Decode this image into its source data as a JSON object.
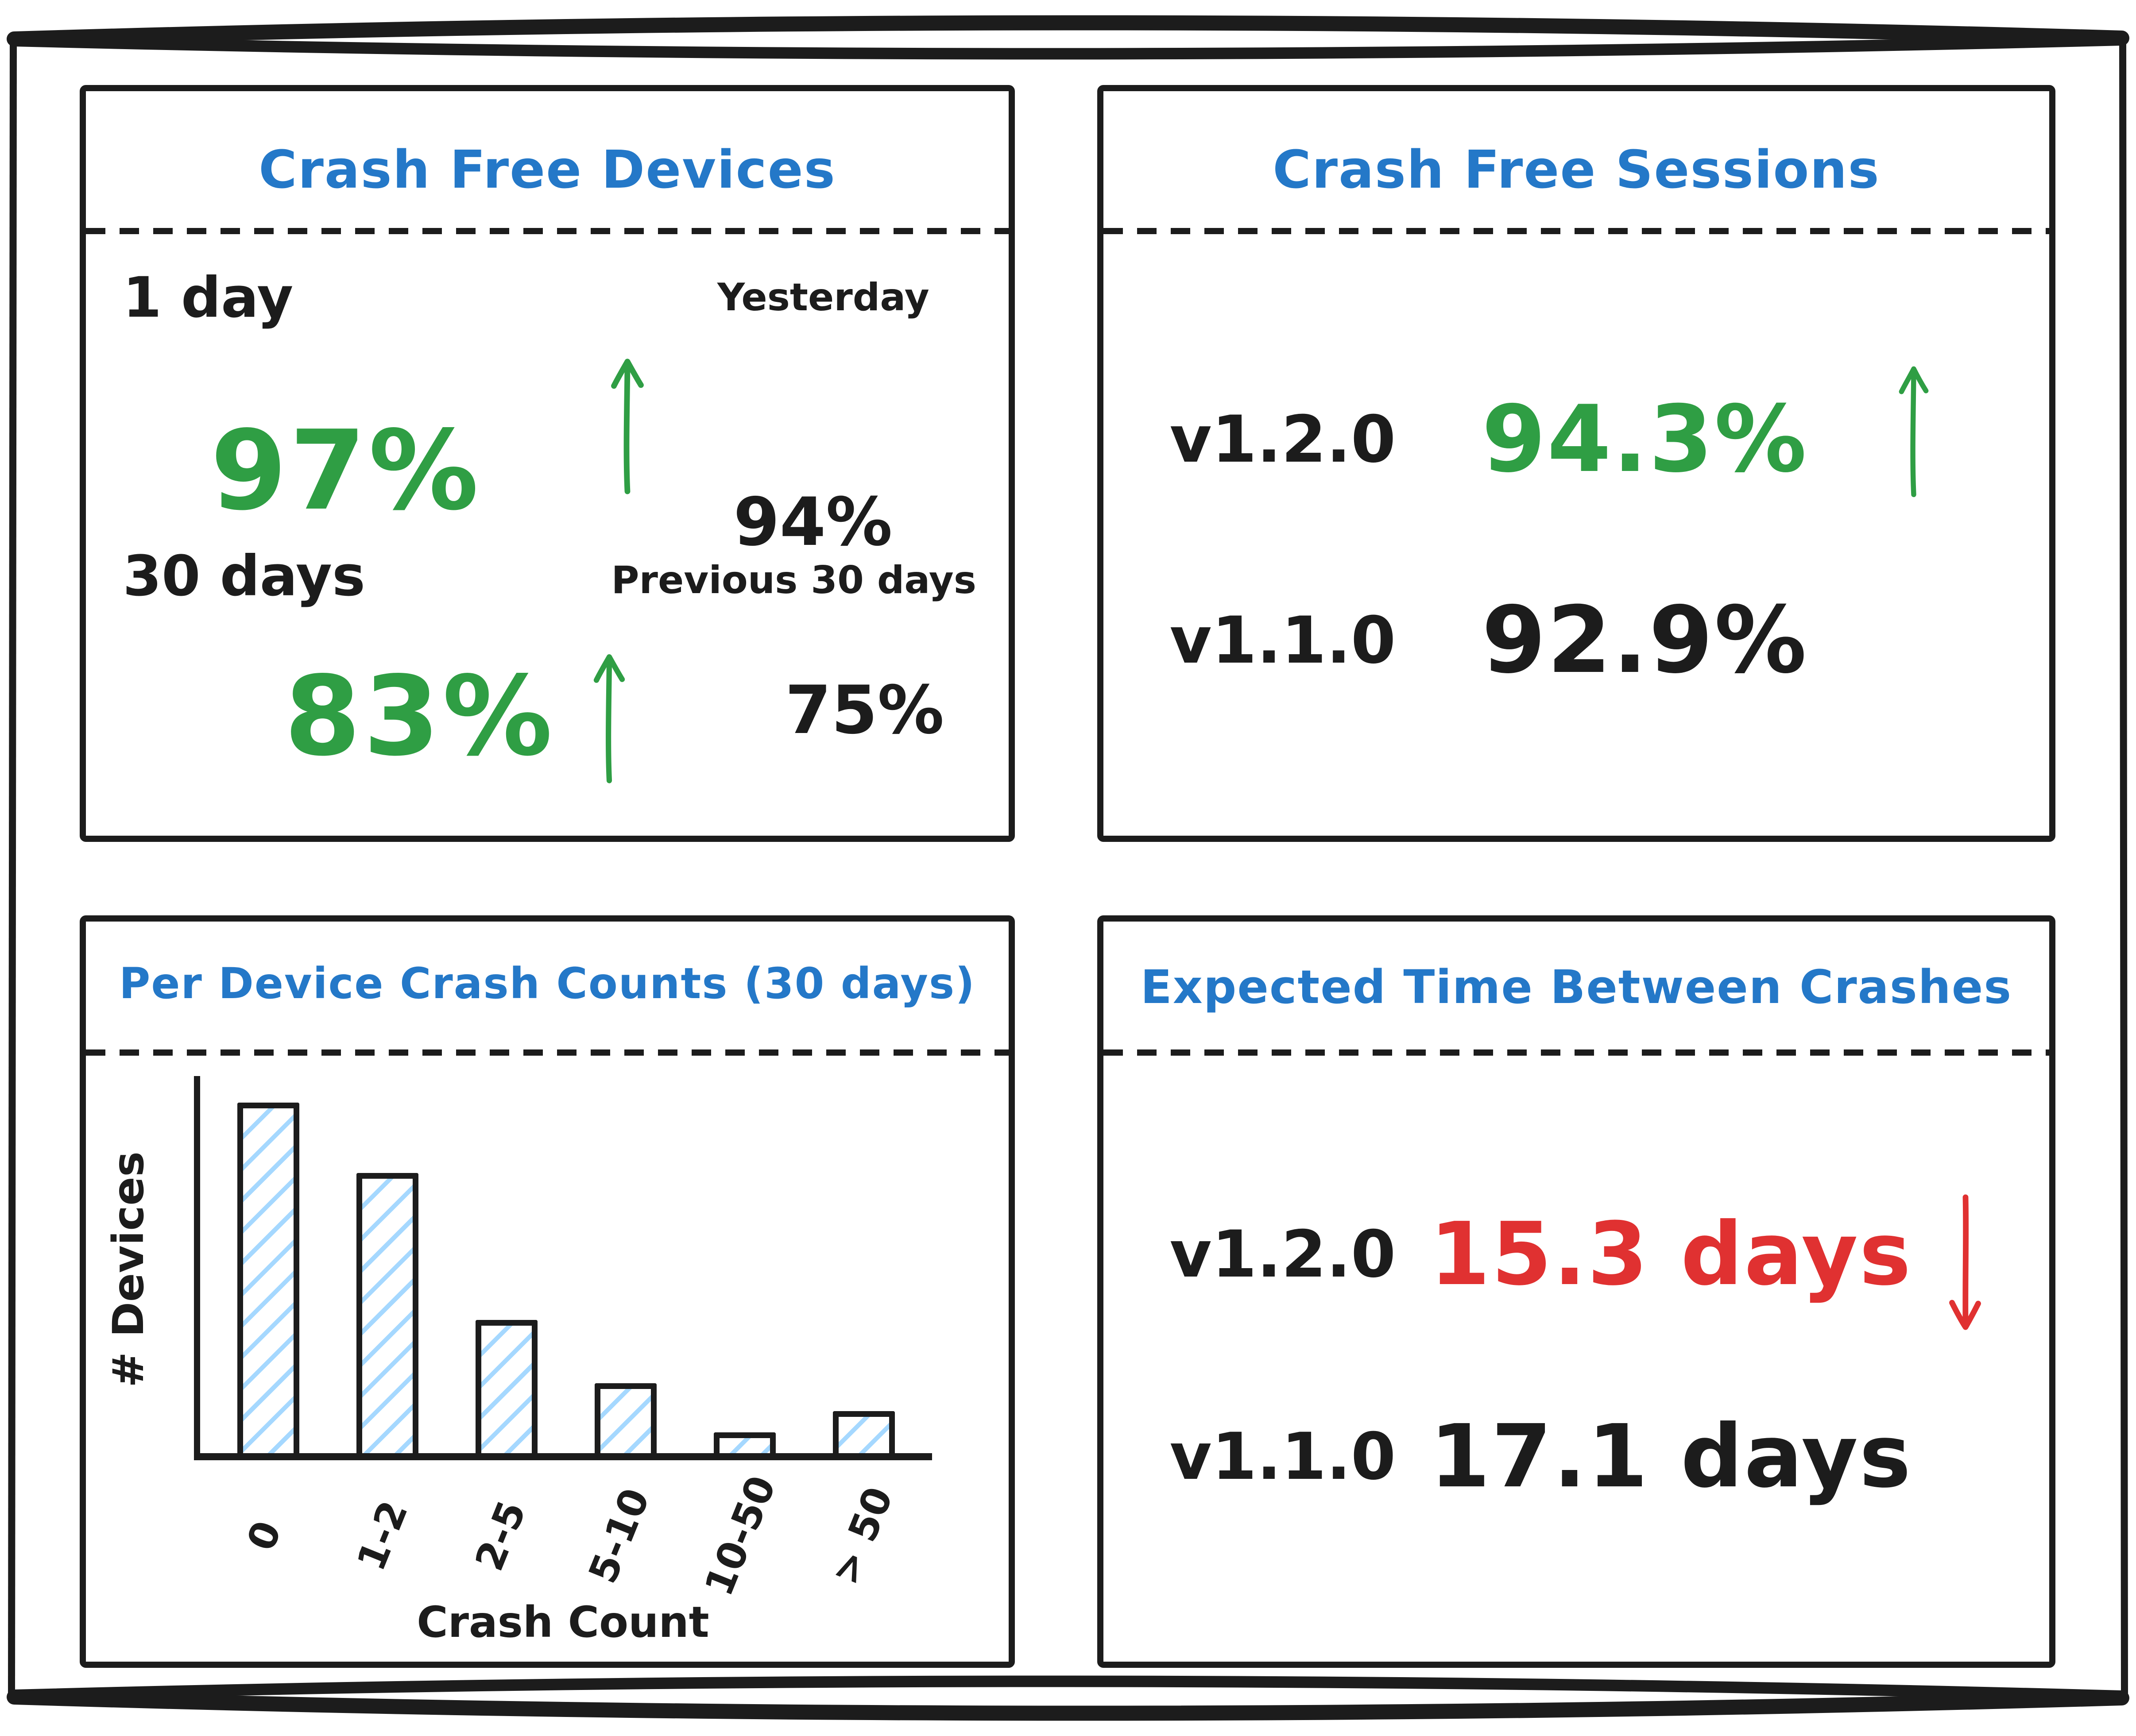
{
  "colors": {
    "ink": "#1c1c1c",
    "blue": "#2478c8",
    "green": "#2f9e44",
    "red": "#e03131",
    "hatch": "#a5d8ff",
    "background": "#ffffff"
  },
  "panels": {
    "crash_free_devices": {
      "title": "Crash Free Devices",
      "rows": [
        {
          "label": "1 day",
          "value": "97%",
          "trend": "up",
          "compare_label": "Yesterday",
          "compare_value": "94%"
        },
        {
          "label": "30 days",
          "value": "83%",
          "trend": "up",
          "compare_label": "Previous 30 days",
          "compare_value": "75%"
        }
      ]
    },
    "crash_free_sessions": {
      "title": "Crash Free Sessions",
      "rows": [
        {
          "version": "v1.2.0",
          "value": "94.3%",
          "trend": "up"
        },
        {
          "version": "v1.1.0",
          "value": "92.9%",
          "trend": "none"
        }
      ]
    },
    "expected_time_between_crashes": {
      "title": "Expected Time Between Crashes",
      "rows": [
        {
          "version": "v1.2.0",
          "value": "15.3 days",
          "trend": "down"
        },
        {
          "version": "v1.1.0",
          "value": "17.1 days",
          "trend": "none"
        }
      ]
    }
  },
  "chart_data": {
    "type": "bar",
    "title": "Per Device Crash Counts (30 days)",
    "categories": [
      "0",
      "1-2",
      "2-5",
      "5-10",
      "10-50",
      "> 50"
    ],
    "values": [
      100,
      80,
      38,
      20,
      6,
      12
    ],
    "values_note": "relative bar heights as % of tallest bar; y-axis shows no numeric ticks",
    "xlabel": "Crash Count",
    "ylabel": "# Devices",
    "ylim": [
      0,
      100
    ],
    "grid": false,
    "legend": false,
    "bar_style": "black outline with light-blue diagonal hatch fill"
  }
}
